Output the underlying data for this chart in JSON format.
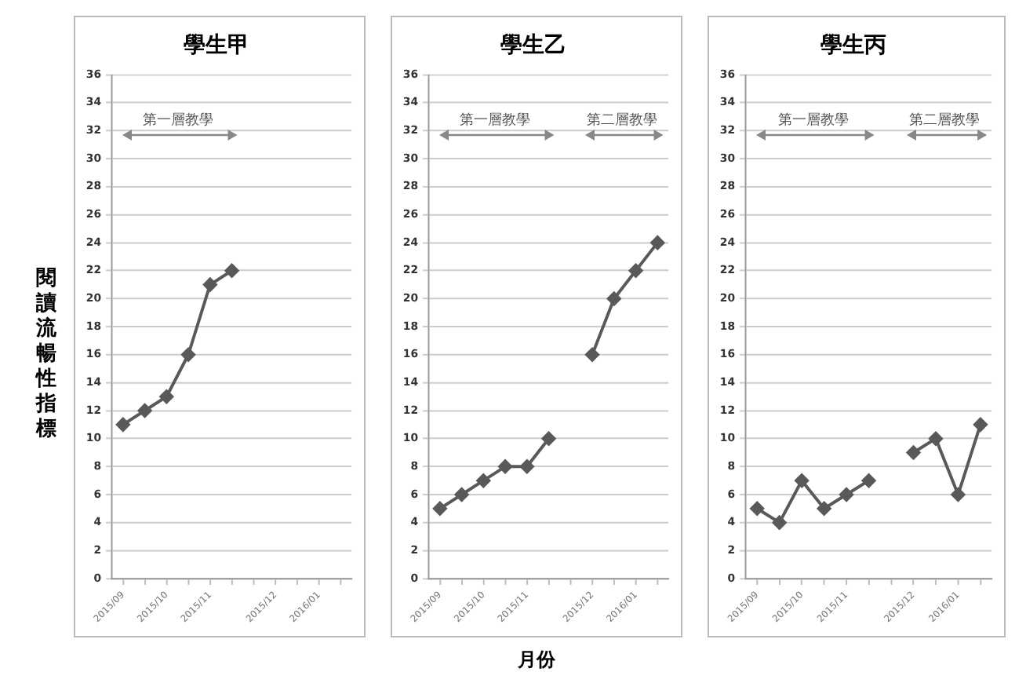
{
  "chart_data": [
    {
      "type": "line",
      "title": "學生甲",
      "ylabel": "閱讀流暢性指標",
      "categories": [
        "2015/09",
        null,
        "2015/10",
        null,
        "2015/11",
        null,
        null,
        "2015/12",
        null,
        "2016/01",
        null
      ],
      "series": [
        {
          "color": "#595959",
          "values": [
            11,
            12,
            13,
            16,
            21,
            22,
            null,
            null,
            null,
            null,
            null
          ]
        }
      ],
      "ylim": [
        0,
        36
      ],
      "yticks": [
        0,
        2,
        4,
        6,
        8,
        10,
        12,
        14,
        16,
        18,
        20,
        22,
        24,
        26,
        28,
        30,
        32,
        34,
        36
      ],
      "grid": "y",
      "marker": "diamond",
      "line_style": "solid",
      "legend": false,
      "annotations": [
        "第一層教學"
      ]
    },
    {
      "type": "line",
      "title": "學生乙",
      "xlabel": "月份",
      "categories": [
        "2015/09",
        null,
        "2015/10",
        null,
        "2015/11",
        null,
        null,
        "2015/12",
        null,
        "2016/01",
        null
      ],
      "series": [
        {
          "color": "#595959",
          "values": [
            5,
            6,
            7,
            8,
            8,
            10,
            null,
            16,
            20,
            22,
            24
          ]
        }
      ],
      "ylim": [
        0,
        36
      ],
      "yticks": [
        0,
        2,
        4,
        6,
        8,
        10,
        12,
        14,
        16,
        18,
        20,
        22,
        24,
        26,
        28,
        30,
        32,
        34,
        36
      ],
      "grid": "y",
      "marker": "diamond",
      "line_style": "solid",
      "legend": false,
      "annotations": [
        "第一層教學",
        "第二層教學"
      ]
    },
    {
      "type": "line",
      "title": "學生丙",
      "categories": [
        "2015/09",
        null,
        "2015/10",
        null,
        "2015/11",
        null,
        null,
        "2015/12",
        null,
        "2016/01",
        null
      ],
      "series": [
        {
          "color": "#595959",
          "values": [
            5,
            4,
            7,
            5,
            6,
            7,
            null,
            9,
            10,
            6,
            11
          ]
        }
      ],
      "ylim": [
        0,
        36
      ],
      "yticks": [
        0,
        2,
        4,
        6,
        8,
        10,
        12,
        14,
        16,
        18,
        20,
        22,
        24,
        26,
        28,
        30,
        32,
        34,
        36
      ],
      "grid": "y",
      "marker": "diamond",
      "line_style": "solid",
      "legend": false,
      "annotations": [
        "第一層教學",
        "第二層教學"
      ]
    }
  ]
}
